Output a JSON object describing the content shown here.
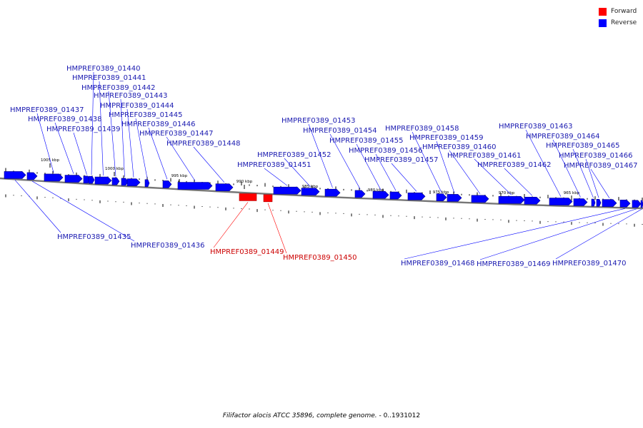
{
  "colors": {
    "forward": "#ff0000",
    "reverse": "#0000ff",
    "label_forward": "#cc0000",
    "label_reverse": "#1a1ab0",
    "backbone": "#777777"
  },
  "legend": {
    "forward": "Forward",
    "reverse": "Reverse"
  },
  "caption": {
    "organism": "Filifactor alocis ATCC 35896, complete genome.",
    "range": " - 0..1931012"
  },
  "scale_labels": [
    "1005 kbp",
    "1000 kbp",
    "995 kbp",
    "990 kbp",
    "985 kbp",
    "980 kbp",
    "975 kbp",
    "970 kbp",
    "965 kbp"
  ],
  "genes": [
    {
      "name": "HMPREF0389_01435",
      "strand": "reverse"
    },
    {
      "name": "HMPREF0389_01436",
      "strand": "reverse"
    },
    {
      "name": "HMPREF0389_01437",
      "strand": "reverse"
    },
    {
      "name": "HMPREF0389_01438",
      "strand": "reverse"
    },
    {
      "name": "HMPREF0389_01439",
      "strand": "reverse"
    },
    {
      "name": "HMPREF0389_01440",
      "strand": "reverse"
    },
    {
      "name": "HMPREF0389_01441",
      "strand": "reverse"
    },
    {
      "name": "HMPREF0389_01442",
      "strand": "reverse"
    },
    {
      "name": "HMPREF0389_01443",
      "strand": "reverse"
    },
    {
      "name": "HMPREF0389_01444",
      "strand": "reverse"
    },
    {
      "name": "HMPREF0389_01445",
      "strand": "reverse"
    },
    {
      "name": "HMPREF0389_01446",
      "strand": "reverse"
    },
    {
      "name": "HMPREF0389_01447",
      "strand": "reverse"
    },
    {
      "name": "HMPREF0389_01448",
      "strand": "reverse"
    },
    {
      "name": "HMPREF0389_01449",
      "strand": "forward"
    },
    {
      "name": "HMPREF0389_01450",
      "strand": "forward"
    },
    {
      "name": "HMPREF0389_01451",
      "strand": "reverse"
    },
    {
      "name": "HMPREF0389_01452",
      "strand": "reverse"
    },
    {
      "name": "HMPREF0389_01453",
      "strand": "reverse"
    },
    {
      "name": "HMPREF0389_01454",
      "strand": "reverse"
    },
    {
      "name": "HMPREF0389_01455",
      "strand": "reverse"
    },
    {
      "name": "HMPREF0389_01456",
      "strand": "reverse"
    },
    {
      "name": "HMPREF0389_01457",
      "strand": "reverse"
    },
    {
      "name": "HMPREF0389_01458",
      "strand": "reverse"
    },
    {
      "name": "HMPREF0389_01459",
      "strand": "reverse"
    },
    {
      "name": "HMPREF0389_01460",
      "strand": "reverse"
    },
    {
      "name": "HMPREF0389_01461",
      "strand": "reverse"
    },
    {
      "name": "HMPREF0389_01462",
      "strand": "reverse"
    },
    {
      "name": "HMPREF0389_01463",
      "strand": "reverse"
    },
    {
      "name": "HMPREF0389_01464",
      "strand": "reverse"
    },
    {
      "name": "HMPREF0389_01465",
      "strand": "reverse"
    },
    {
      "name": "HMPREF0389_01466",
      "strand": "reverse"
    },
    {
      "name": "HMPREF0389_01467",
      "strand": "reverse"
    },
    {
      "name": "HMPREF0389_01468",
      "strand": "reverse"
    },
    {
      "name": "HMPREF0389_01469",
      "strand": "reverse"
    },
    {
      "name": "HMPREF0389_01470",
      "strand": "reverse"
    }
  ]
}
